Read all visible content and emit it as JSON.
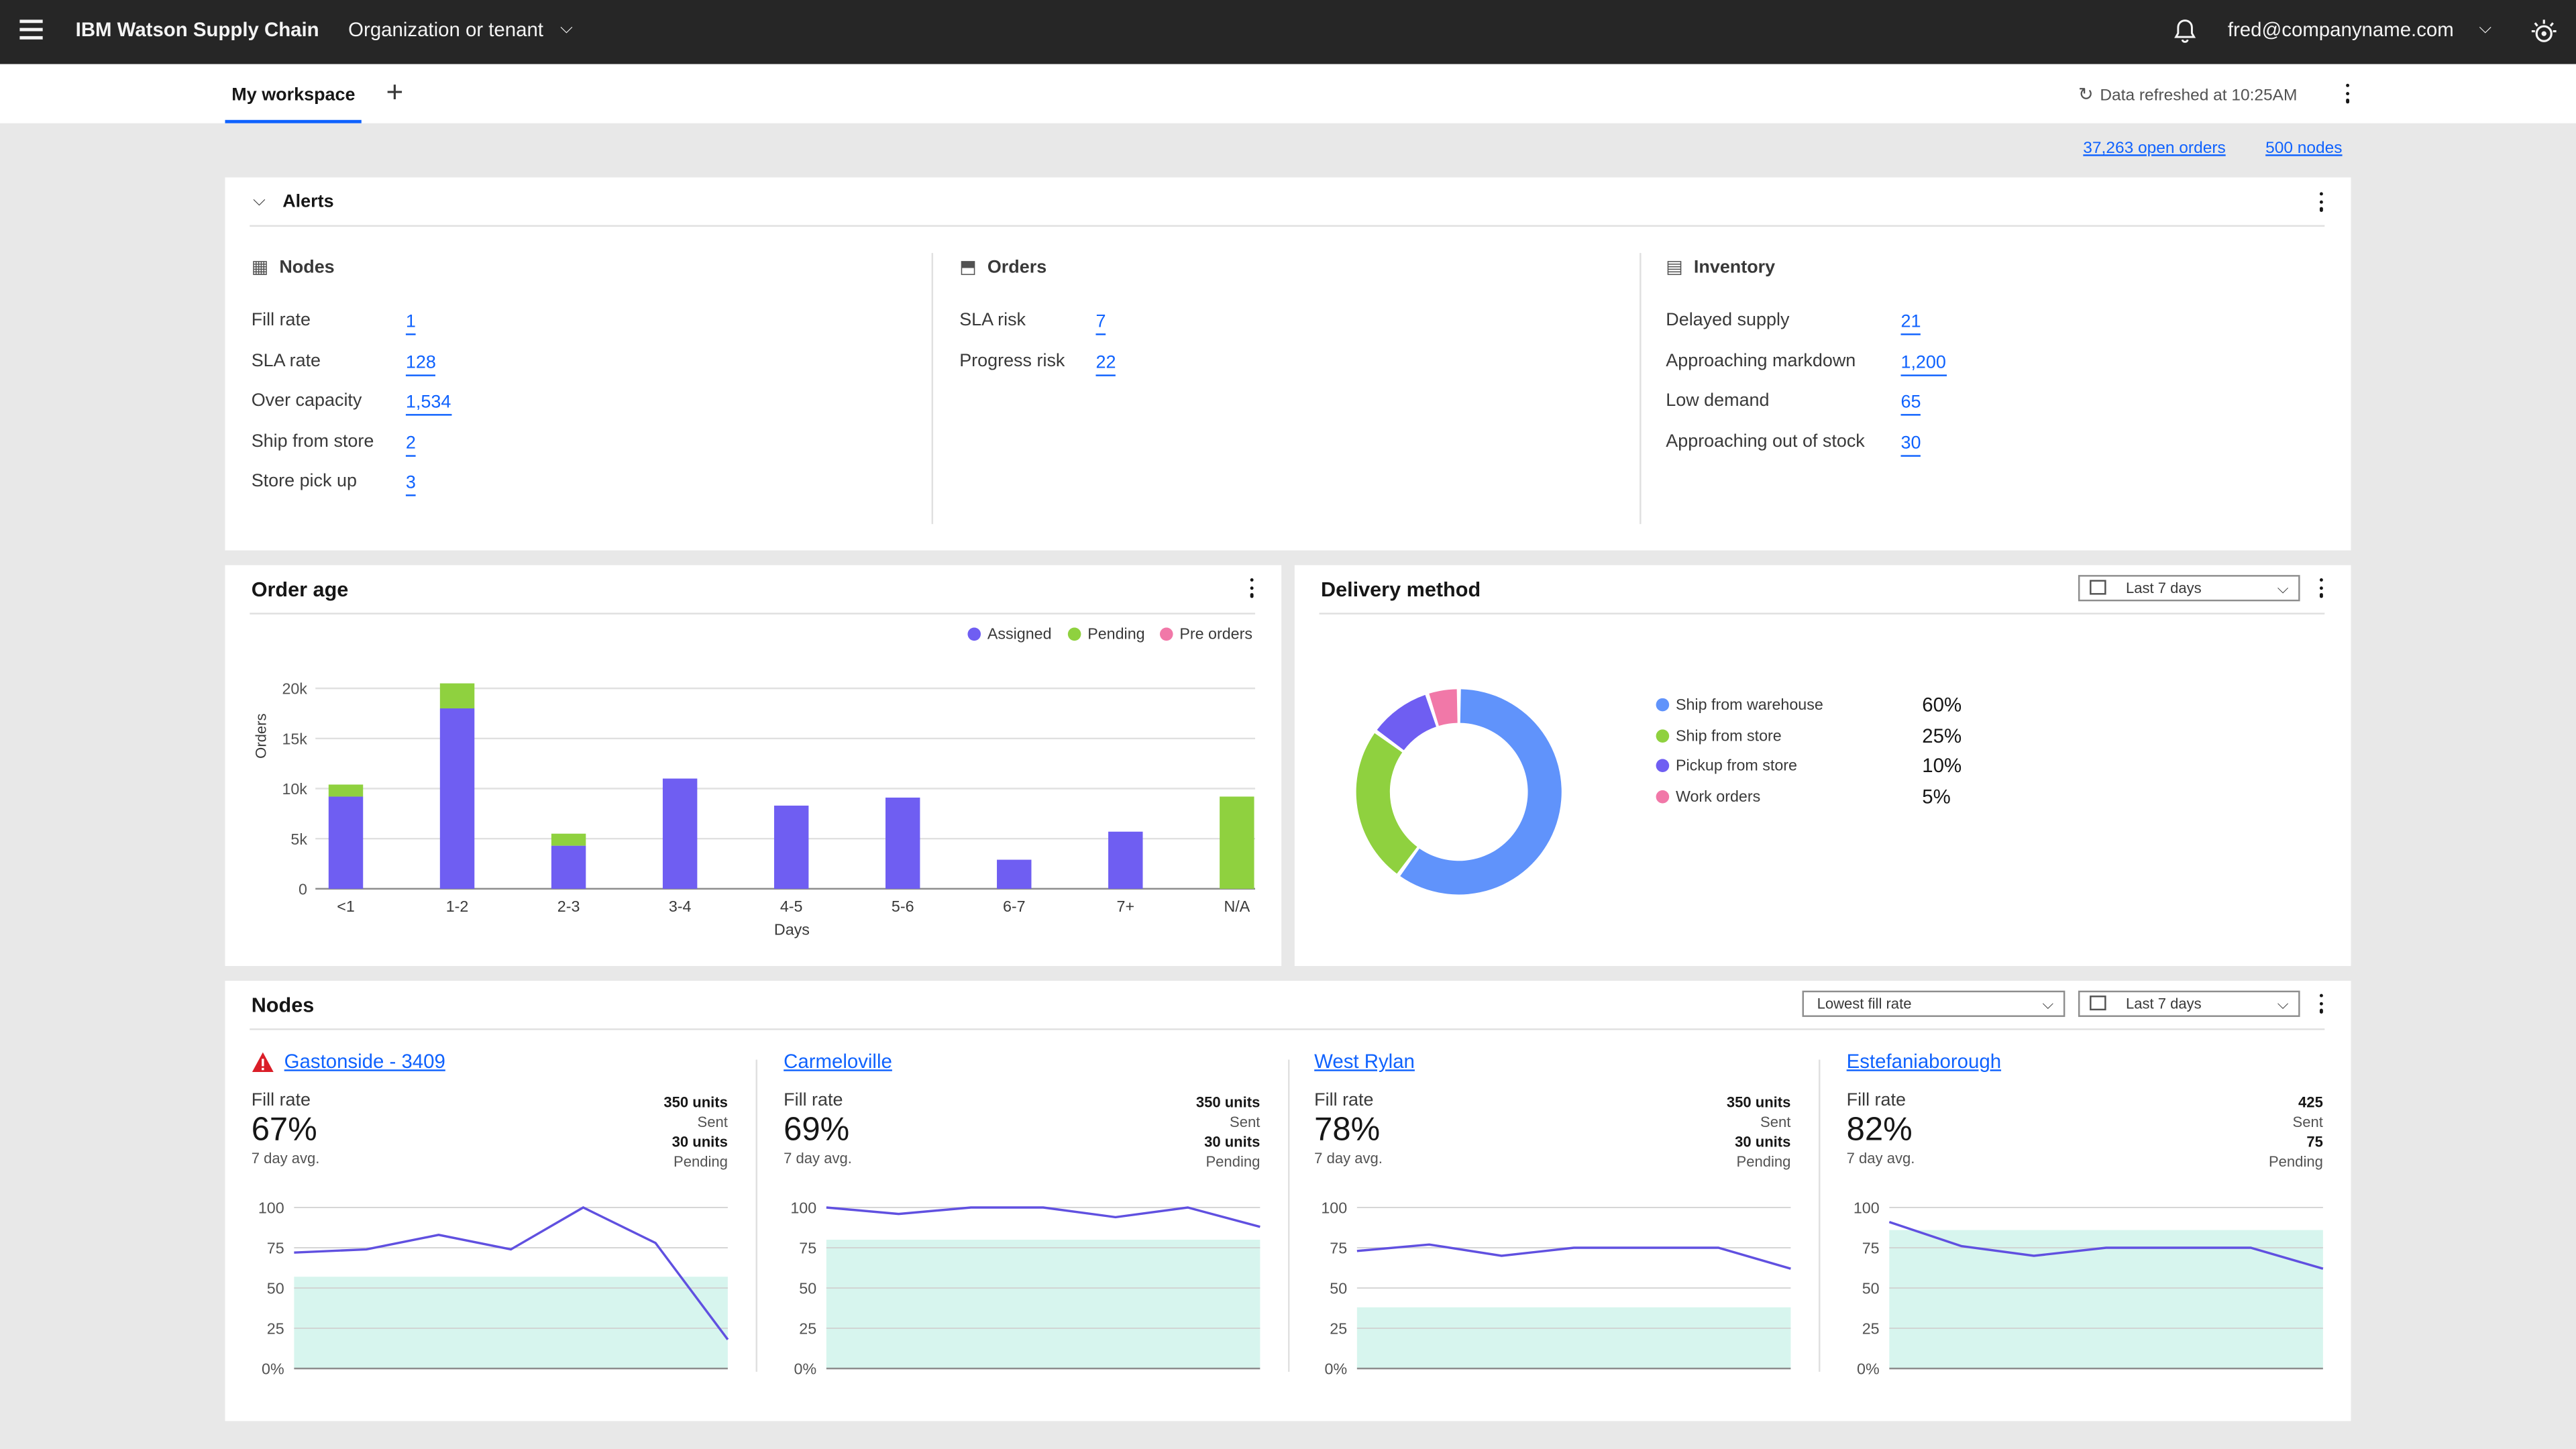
{
  "header": {
    "brand": "IBM Watson Supply Chain",
    "tenant": "Organization or tenant",
    "user": "fred@companyname.com"
  },
  "tabs": {
    "active": "My workspace",
    "add_label": "+"
  },
  "refresh": {
    "text": "Data refreshed at 10:25AM"
  },
  "summary": {
    "open_orders": "37,263 open orders",
    "nodes": "500 nodes"
  },
  "alerts": {
    "title": "Alerts",
    "nodes": {
      "title": "Nodes",
      "items": [
        {
          "label": "Fill rate",
          "value": "1"
        },
        {
          "label": "SLA rate",
          "value": "128"
        },
        {
          "label": "Over capacity",
          "value": "1,534"
        },
        {
          "label": "Ship from store",
          "value": "2"
        },
        {
          "label": "Store pick up",
          "value": "3"
        }
      ]
    },
    "orders": {
      "title": "Orders",
      "items": [
        {
          "label": "SLA risk",
          "value": "7"
        },
        {
          "label": "Progress risk",
          "value": "22"
        }
      ]
    },
    "inventory": {
      "title": "Inventory",
      "items": [
        {
          "label": "Delayed supply",
          "value": "21"
        },
        {
          "label": "Approaching markdown",
          "value": "1,200"
        },
        {
          "label": "Low demand",
          "value": "65"
        },
        {
          "label": "Approaching out of stock",
          "value": "30"
        }
      ]
    }
  },
  "order_age": {
    "title": "Order age"
  },
  "delivery": {
    "title": "Delivery method",
    "range": "Last 7 days"
  },
  "nodes_panel": {
    "title": "Nodes",
    "sort": "Lowest fill rate",
    "range": "Last 7 days"
  },
  "colors": {
    "assigned": "#6f5ef2",
    "pending": "#8fd13f",
    "preorders": "#f178a8",
    "warehouse": "#6093fb",
    "line": "#6050e0",
    "area": "#d7f5ee",
    "link": "#0f62fe"
  },
  "chart_data": [
    {
      "type": "bar",
      "stacked": true,
      "categories": [
        "<1",
        "1-2",
        "2-3",
        "3-4",
        "4-5",
        "5-6",
        "6-7",
        "7+",
        "N/A"
      ],
      "series": [
        {
          "name": "Assigned",
          "values": [
            9200,
            18000,
            4300,
            11000,
            8300,
            9100,
            2900,
            5700,
            0
          ]
        },
        {
          "name": "Pending",
          "values": [
            1200,
            2500,
            1200,
            0,
            0,
            0,
            0,
            0,
            9200
          ]
        },
        {
          "name": "Pre orders",
          "values": [
            0,
            0,
            0,
            0,
            0,
            0,
            0,
            0,
            0
          ]
        }
      ],
      "xlabel": "Days",
      "ylabel": "Orders",
      "yticks": [
        "0",
        "5k",
        "10k",
        "15k",
        "20k"
      ],
      "ylim": [
        0,
        21000
      ],
      "legend": "top-right",
      "grid": true
    },
    {
      "type": "pie",
      "donut": true,
      "labels": [
        "Ship from warehouse",
        "Ship from store",
        "Pickup from store",
        "Work orders"
      ],
      "values": [
        60,
        25,
        10,
        5
      ],
      "value_labels": [
        "60%",
        "25%",
        "10%",
        "5%"
      ],
      "legend": "right"
    },
    {
      "type": "area",
      "name": "Gastonside - 3409",
      "warning": true,
      "fill_label": "Fill rate",
      "fill_value": "67%",
      "avg_label": "7 day avg.",
      "sent_value": "350 units",
      "sent_label": "Sent",
      "pending_value": "30 units",
      "pending_label": "Pending",
      "line": [
        72,
        74,
        83,
        74,
        100,
        78,
        18
      ],
      "area": 57,
      "yticks": [
        "100",
        "75",
        "50",
        "25",
        "0%"
      ],
      "ylim": [
        0,
        100
      ]
    },
    {
      "type": "area",
      "name": "Carmeloville",
      "warning": false,
      "fill_label": "Fill rate",
      "fill_value": "69%",
      "avg_label": "7 day avg.",
      "sent_value": "350 units",
      "sent_label": "Sent",
      "pending_value": "30 units",
      "pending_label": "Pending",
      "line": [
        100,
        96,
        100,
        100,
        94,
        100,
        88
      ],
      "area": 80,
      "yticks": [
        "100",
        "75",
        "50",
        "25",
        "0%"
      ],
      "ylim": [
        0,
        100
      ]
    },
    {
      "type": "area",
      "name": "West Rylan",
      "warning": false,
      "fill_label": "Fill rate",
      "fill_value": "78%",
      "avg_label": "7 day avg.",
      "sent_value": "350 units",
      "sent_label": "Sent",
      "pending_value": "30 units",
      "pending_label": "Pending",
      "line": [
        73,
        77,
        70,
        75,
        75,
        75,
        62
      ],
      "area": 38,
      "yticks": [
        "100",
        "75",
        "50",
        "25",
        "0%"
      ],
      "ylim": [
        0,
        100
      ]
    },
    {
      "type": "area",
      "name": "Estefaniaborough",
      "warning": false,
      "fill_label": "Fill rate",
      "fill_value": "82%",
      "avg_label": "7 day avg.",
      "sent_value": "425",
      "sent_label": "Sent",
      "pending_value": "75",
      "pending_label": "Pending",
      "line": [
        91,
        76,
        70,
        75,
        75,
        75,
        62
      ],
      "area": 86,
      "yticks": [
        "100",
        "75",
        "50",
        "25",
        "0%"
      ],
      "ylim": [
        0,
        100
      ]
    }
  ]
}
